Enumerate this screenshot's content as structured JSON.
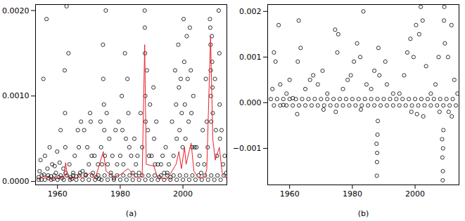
{
  "chart_data": [
    {
      "type": "scatter",
      "x_label": "(a)",
      "xlim": [
        1953,
        2014
      ],
      "xticks": [
        1960,
        1980,
        2000
      ],
      "ylim": [
        -4e-05,
        0.00207
      ],
      "yticks": [
        {
          "value": 0,
          "label": "0.0000"
        },
        {
          "value": 0.001,
          "label": "0.0010"
        },
        {
          "value": 0.002,
          "label": "0.0020"
        }
      ],
      "series": [
        {
          "type": "scatter",
          "color": "black",
          "marker": "circle",
          "x": [
            1954.0,
            1954.3,
            1954.6,
            1954.9,
            1955.5,
            1955.7,
            1956.0,
            1956.5,
            1956.8,
            1957.2,
            1957.5,
            1957.9,
            1958.3,
            1958.7,
            1959.1,
            1959.5,
            1959.9,
            1960.4,
            1960.7,
            1961.0,
            1961.5,
            1961.9,
            1962.3,
            1962.4,
            1962.5,
            1962.6,
            1962.9,
            1963.5,
            1963.8,
            1964.2,
            1964.6,
            1965.0,
            1965.5,
            1966.0,
            1966.5,
            1966.8,
            1967.2,
            1967.5,
            1968.0,
            1968.5,
            1969.0,
            1969.5,
            1970.0,
            1970.4,
            1970.6,
            1970.9,
            1971.3,
            1971.8,
            1972.4,
            1972.9,
            1973.3,
            1973.7,
            1973.9,
            1974.2,
            1974.5,
            1974.6,
            1974.8,
            1974.9,
            1975.1,
            1975.4,
            1975.7,
            1976.0,
            1976.5,
            1977.0,
            1977.5,
            1978.0,
            1978.5,
            1979.0,
            1979.5,
            1980.0,
            1980.5,
            1980.7,
            1981.0,
            1981.5,
            1981.8,
            1982.3,
            1982.6,
            1982.9,
            1983.5,
            1984.0,
            1984.5,
            1985.0,
            1985.5,
            1986.0,
            1986.5,
            1987.0,
            1987.8,
            1987.85,
            1987.9,
            1988.0,
            1988.1,
            1988.5,
            1988.8,
            1989.2,
            1989.5,
            1990.0,
            1990.6,
            1990.8,
            1991.1,
            1991.5,
            1992.0,
            1992.5,
            1993.0,
            1993.5,
            1994.0,
            1994.5,
            1995.0,
            1995.5,
            1996.0,
            1996.5,
            1997.0,
            1997.5,
            1997.8,
            1998.0,
            1998.5,
            1998.7,
            1998.9,
            1999.3,
            1999.6,
            1999.9,
            2000.2,
            2000.4,
            2000.6,
            2000.8,
            2001.2,
            2001.5,
            2001.8,
            2002.2,
            2002.5,
            2002.7,
            2002.9,
            2003.3,
            2003.7,
            2004.3,
            2004.8,
            2005.3,
            2005.8,
            2006.3,
            2006.8,
            2007.3,
            2007.6,
            2007.9,
            2008.6,
            2008.7,
            2008.8,
            2008.85,
            2008.9,
            2009.0,
            2009.2,
            2009.3,
            2009.4,
            2009.5,
            2010.2,
            2010.5,
            2010.8,
            2011.4,
            2011.6,
            2011.7,
            2011.8,
            2012.3,
            2012.8,
            2013.3,
            2013.8,
            1954,
            1955,
            1956,
            1957,
            1958,
            1959,
            1960,
            1961,
            1962,
            1963,
            1964,
            1965,
            1966,
            1967,
            1968,
            1969,
            1970,
            1971,
            1972,
            1973,
            1974,
            1975,
            1976,
            1977,
            1978,
            1979,
            1980,
            1981,
            1982,
            1983,
            1984,
            1985,
            1986,
            1987,
            1988,
            1989,
            1990,
            1991,
            1992,
            1993,
            1994,
            1995,
            1996,
            1997,
            1998,
            1999,
            2000,
            2001,
            2002,
            2003,
            2004,
            2005,
            2006,
            2007,
            2008,
            2009,
            2010,
            2011,
            2012,
            2013
          ],
          "values": [
            5e-05,
            0.00012,
            0.00025,
            2e-05,
            0.0012,
            8e-05,
            0.0003,
            0.0019,
            0.00015,
            4e-05,
            0.0004,
            6e-05,
            0.0002,
            3e-05,
            0.00018,
            0.0001,
            0.00035,
            5e-05,
            0.00022,
            0.0006,
            4e-05,
            0.00015,
            0.0013,
            0.0008,
            0.0004,
            0.0001,
            0.00205,
            0.0015,
            0.0002,
            5e-05,
            3e-05,
            0.0001,
            0.0003,
            6e-05,
            0.0006,
            0.0004,
            0.0001,
            0.0007,
            0.00012,
            0.0006,
            8e-05,
            0.0004,
            0.0002,
            0.0008,
            0.0007,
            0.0003,
            0.0001,
            0.0003,
            5e-05,
            0.0002,
            3e-05,
            0.0007,
            0.0004,
            0.0002,
            0.0016,
            0.0012,
            0.0009,
            0.0006,
            0.0003,
            0.002,
            0.0008,
            0.0002,
            0.0005,
            0.0001,
            0.0003,
            4e-05,
            0.0006,
            0.0002,
            0.0007,
            0.0003,
            0.001,
            0.0006,
            0.0002,
            0.0015,
            0.0005,
            0.0012,
            0.0008,
            0.0004,
            0.0003,
            0.0001,
            0.0005,
            0.0002,
            0.0003,
            0.0001,
            0.0008,
            0.0004,
            0.002,
            0.0018,
            0.0015,
            0.001,
            0.0007,
            0.0013,
            0.0006,
            0.0003,
            0.0009,
            0.0003,
            0.0011,
            0.0005,
            0.0002,
            0.0007,
            0.0002,
            5e-05,
            0.0002,
            0.0003,
            0.0001,
            0.0004,
            0.0001,
            0.0002,
            5e-05,
            0.0007,
            0.0003,
            0.0013,
            0.0009,
            0.0005,
            0.0016,
            0.0011,
            0.0006,
            0.0012,
            0.0008,
            0.0004,
            0.0019,
            0.0014,
            0.0009,
            0.0005,
            0.0017,
            0.0012,
            0.0007,
            0.0018,
            0.0013,
            0.0008,
            0.0004,
            0.001,
            0.0004,
            0.0004,
            0.0002,
            0.0003,
            0.0001,
            0.0006,
            0.0002,
            0.0012,
            0.0007,
            0.0004,
            0.0019,
            0.0018,
            0.0016,
            0.0013,
            0.001,
            0.0007,
            0.0017,
            0.0014,
            0.0011,
            0.0008,
            0.0012,
            0.0006,
            0.0003,
            0.002,
            0.0015,
            0.0009,
            0.0005,
            0.0006,
            0.0002,
            0.0003,
            0.0001,
            2e-05,
            7e-05,
            2e-05,
            7e-05,
            2e-05,
            7e-05,
            2e-05,
            7e-05,
            2e-05,
            7e-05,
            2e-05,
            7e-05,
            2e-05,
            7e-05,
            2e-05,
            7e-05,
            2e-05,
            7e-05,
            2e-05,
            7e-05,
            2e-05,
            7e-05,
            2e-05,
            7e-05,
            2e-05,
            7e-05,
            2e-05,
            7e-05,
            2e-05,
            7e-05,
            2e-05,
            7e-05,
            2e-05,
            7e-05,
            2e-05,
            7e-05,
            2e-05,
            7e-05,
            2e-05,
            7e-05,
            2e-05,
            7e-05,
            2e-05,
            7e-05,
            2e-05,
            7e-05,
            2e-05,
            7e-05,
            2e-05,
            7e-05,
            2e-05,
            7e-05,
            2e-05,
            7e-05,
            2e-05,
            7e-05,
            2e-05,
            7e-05,
            2e-05,
            7e-05
          ]
        },
        {
          "type": "line",
          "color": "#e8202a",
          "x": [
            1954,
            1956,
            1958,
            1960,
            1962,
            1962.6,
            1963.2,
            1966,
            1967,
            1968,
            1970.5,
            1972,
            1974.6,
            1975.5,
            1978,
            1980,
            1982.5,
            1985,
            1987,
            1987.8,
            1988.3,
            1990.7,
            1992,
            1995,
            1997.8,
            1998.7,
            1999.5,
            2000.5,
            2001,
            2002.6,
            2003.5,
            2005,
            2007,
            2007.6,
            2008.8,
            2009.5,
            2010.3,
            2011.6,
            2012.5,
            2013.8
          ],
          "values": [
            4e-05,
            6e-05,
            3e-05,
            4e-05,
            5e-05,
            0.00022,
            5e-05,
            4e-05,
            8e-05,
            4e-05,
            0.0001,
            3e-05,
            0.00035,
            0.00012,
            5e-05,
            8e-05,
            0.00015,
            5e-05,
            6e-05,
            0.0016,
            0.0002,
            0.00018,
            4e-05,
            3e-05,
            0.0002,
            0.00035,
            0.00015,
            0.0004,
            0.0002,
            0.00045,
            0.00012,
            4e-05,
            5e-05,
            0.00015,
            0.0017,
            0.0005,
            0.00025,
            0.0004,
            0.0001,
            4e-05
          ]
        }
      ]
    },
    {
      "type": "scatter",
      "x_label": "(b)",
      "xlim": [
        1953,
        2014
      ],
      "xticks": [
        1960,
        1980,
        2000
      ],
      "ylim": [
        -0.0018,
        0.00215
      ],
      "yticks": [
        {
          "value": -0.001,
          "label": "−0.001"
        },
        {
          "value": 0,
          "label": "0.000"
        },
        {
          "value": 0.001,
          "label": "0.001"
        },
        {
          "value": 0.002,
          "label": "0.002"
        }
      ],
      "series": [
        {
          "type": "scatter",
          "color": "black",
          "marker": "circle",
          "x": [
            1954.5,
            1955,
            1955.5,
            1956.5,
            1957,
            1958,
            1959,
            1960,
            1961,
            1962.4,
            1962.6,
            1962.9,
            1963.5,
            1965,
            1966.5,
            1967.5,
            1969,
            1970.5,
            1970.8,
            1972,
            1974.5,
            1974.7,
            1975.2,
            1975.5,
            1977,
            1978.5,
            1979.5,
            1980.5,
            1981.5,
            1982.5,
            1982.7,
            1983.5,
            1984.5,
            1986,
            1987,
            1987.7,
            1987.8,
            1987.85,
            1987.9,
            1988,
            1988.1,
            1988.3,
            1988.6,
            1990.5,
            1991,
            1993,
            1995,
            1996.5,
            1997.5,
            1998.5,
            1998.8,
            1999.5,
            2000.3,
            2000.6,
            2001.3,
            2001.8,
            2002.4,
            2002.6,
            2003.5,
            2005,
            2006.5,
            2007.5,
            2007.8,
            2008.6,
            2008.7,
            2008.8,
            2008.85,
            2008.9,
            2009,
            2009.2,
            2009.3,
            2009.5,
            2010.5,
            2010.7,
            2011.6,
            2011.7,
            2012.5,
            2013.5,
            1954,
            1955,
            1956,
            1957,
            1958,
            1959,
            1960,
            1961,
            1962,
            1963,
            1964,
            1965,
            1966,
            1967,
            1968,
            1969,
            1970,
            1971,
            1972,
            1973,
            1974,
            1975,
            1976,
            1977,
            1978,
            1979,
            1980,
            1981,
            1982,
            1983,
            1984,
            1985,
            1986,
            1987,
            1988,
            1989,
            1990,
            1991,
            1992,
            1993,
            1994,
            1995,
            1996,
            1997,
            1998,
            1999,
            2000,
            2001,
            2002,
            2003,
            2004,
            2005,
            2006,
            2007,
            2008,
            2009,
            2010,
            2011,
            2012,
            2013
          ],
          "values": [
            0.0003,
            0.0011,
            0.0009,
            0.0017,
            0.0004,
            -5e-05,
            0.0002,
            0.0005,
            0.0001,
            -0.00025,
            0.0009,
            0.0018,
            0.0012,
            0.0003,
            0.0005,
            0.0006,
            0.0004,
            0.0007,
            -0.00015,
            0.0002,
            0.0016,
            -0.0002,
            0.0011,
            0.0015,
            0.0003,
            0.0005,
            0.0006,
            0.0009,
            0.0013,
            0.001,
            -0.00015,
            0.002,
            0.0004,
            0.0003,
            0.0007,
            -0.0009,
            -0.0016,
            -0.0013,
            -0.0011,
            -0.0007,
            -0.0004,
            0.0012,
            0.0006,
            0.0009,
            0.0004,
            0.0002,
            0.0002,
            0.0006,
            0.0011,
            0.0014,
            -0.0002,
            0.001,
            0.0017,
            -0.00025,
            0.0015,
            0.0021,
            0.0018,
            -0.0003,
            0.0008,
            0.0002,
            0.0004,
            0.001,
            -0.0002,
            -0.0008,
            -0.0012,
            -0.0017,
            -0.0015,
            -0.001,
            -0.0006,
            0.0018,
            0.0021,
            0.0013,
            0.001,
            -0.0002,
            0.0017,
            -0.0003,
            0.0005,
            0.0002,
            8e-05,
            -6e-05,
            8e-05,
            -6e-05,
            8e-05,
            -6e-05,
            8e-05,
            -6e-05,
            8e-05,
            -6e-05,
            8e-05,
            -6e-05,
            8e-05,
            -6e-05,
            8e-05,
            -6e-05,
            8e-05,
            -6e-05,
            8e-05,
            -6e-05,
            8e-05,
            -6e-05,
            8e-05,
            -6e-05,
            8e-05,
            -6e-05,
            8e-05,
            -6e-05,
            8e-05,
            -6e-05,
            8e-05,
            -6e-05,
            8e-05,
            -6e-05,
            8e-05,
            -6e-05,
            8e-05,
            -6e-05,
            8e-05,
            -6e-05,
            8e-05,
            -6e-05,
            8e-05,
            -6e-05,
            8e-05,
            -6e-05,
            8e-05,
            -6e-05,
            8e-05,
            -6e-05,
            8e-05,
            -6e-05,
            8e-05,
            -6e-05,
            8e-05,
            -6e-05,
            8e-05,
            -6e-05,
            8e-05,
            -6e-05
          ]
        }
      ]
    }
  ]
}
